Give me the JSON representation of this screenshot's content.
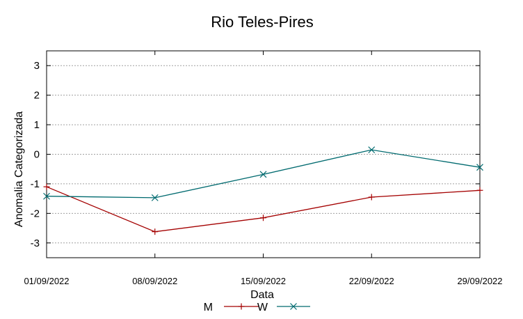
{
  "chart_data": {
    "type": "line",
    "title": "Rio Teles-Pires",
    "xlabel": "Data",
    "ylabel": "Anomalia Categorizada",
    "categories": [
      "01/09/2022",
      "08/09/2022",
      "15/09/2022",
      "22/09/2022",
      "29/09/2022"
    ],
    "ylim": [
      -3.5,
      3.5
    ],
    "yticks": [
      "3",
      "2",
      "1",
      "0",
      "-1",
      "-2",
      "-3"
    ],
    "grid": true,
    "legend_position": "bottom",
    "series": [
      {
        "name": "M",
        "color": "#a40000",
        "marker": "plus",
        "values": [
          -1.1,
          -2.62,
          -2.15,
          -1.45,
          -1.22
        ]
      },
      {
        "name": "W",
        "color": "#006a6f",
        "marker": "cross",
        "values": [
          -1.42,
          -1.47,
          -0.68,
          0.15,
          -0.44
        ]
      }
    ]
  }
}
